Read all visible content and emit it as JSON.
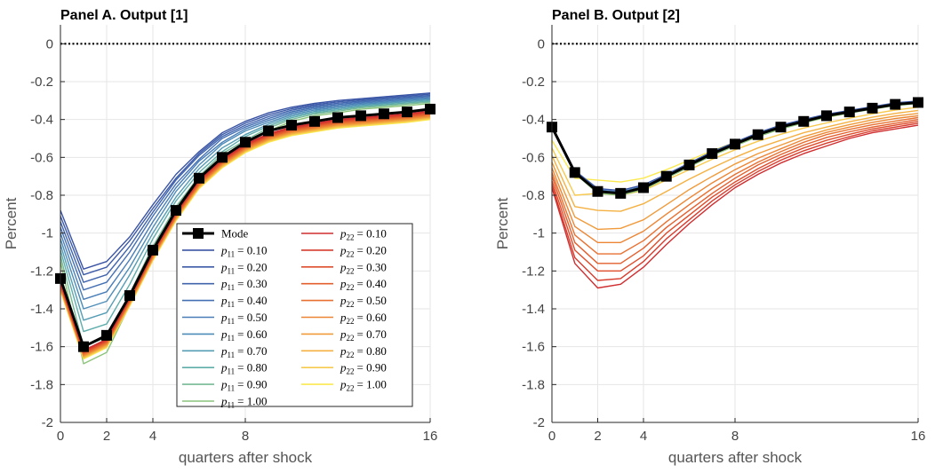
{
  "chart_data": [
    {
      "type": "line",
      "title": "Panel A. Output [1]",
      "xlabel": "quarters after shock",
      "ylabel": "Percent",
      "xlim": [
        0,
        16
      ],
      "ylim": [
        -2,
        0.1
      ],
      "xticks": [
        "0",
        "2",
        "4",
        "8",
        "16"
      ],
      "yticks": [
        "0",
        "-0.2",
        "-0.4",
        "-0.6",
        "-0.8",
        "-1",
        "-1.2",
        "-1.4",
        "-1.6",
        "-1.8",
        "-2"
      ],
      "grid": true,
      "legend": "lower-center",
      "x": [
        0,
        1,
        2,
        3,
        4,
        5,
        6,
        7,
        8,
        9,
        10,
        11,
        12,
        13,
        14,
        15,
        16
      ],
      "zero_line": 0,
      "mode": {
        "name": "Mode",
        "values": [
          -1.24,
          -1.6,
          -1.54,
          -1.33,
          -1.09,
          -0.88,
          -0.71,
          -0.6,
          -0.52,
          -0.46,
          -0.43,
          -0.41,
          -0.39,
          -0.38,
          -0.37,
          -0.36,
          -0.345
        ]
      },
      "series_p11": [
        {
          "name": "p11 = 0.10",
          "color": "#3953a4",
          "values": [
            -0.88,
            -1.19,
            -1.15,
            -1.02,
            -0.85,
            -0.69,
            -0.57,
            -0.47,
            -0.41,
            -0.365,
            -0.335,
            -0.315,
            -0.3,
            -0.29,
            -0.28,
            -0.27,
            -0.26
          ]
        },
        {
          "name": "p11 = 0.20",
          "color": "#3c5aa8",
          "values": [
            -0.91,
            -1.22,
            -1.18,
            -1.04,
            -0.87,
            -0.71,
            -0.58,
            -0.48,
            -0.42,
            -0.375,
            -0.343,
            -0.322,
            -0.307,
            -0.296,
            -0.286,
            -0.276,
            -0.266
          ]
        },
        {
          "name": "p11 = 0.30",
          "color": "#4064ad",
          "values": [
            -0.94,
            -1.26,
            -1.22,
            -1.07,
            -0.89,
            -0.72,
            -0.59,
            -0.49,
            -0.43,
            -0.385,
            -0.351,
            -0.329,
            -0.314,
            -0.302,
            -0.292,
            -0.282,
            -0.272
          ]
        },
        {
          "name": "p11 = 0.40",
          "color": "#4470b3",
          "values": [
            -0.97,
            -1.3,
            -1.26,
            -1.1,
            -0.91,
            -0.74,
            -0.61,
            -0.5,
            -0.44,
            -0.395,
            -0.359,
            -0.336,
            -0.321,
            -0.308,
            -0.298,
            -0.288,
            -0.278
          ]
        },
        {
          "name": "p11 = 0.50",
          "color": "#487db7",
          "values": [
            -1.0,
            -1.35,
            -1.31,
            -1.14,
            -0.94,
            -0.76,
            -0.62,
            -0.52,
            -0.45,
            -0.405,
            -0.367,
            -0.343,
            -0.328,
            -0.314,
            -0.304,
            -0.294,
            -0.284
          ]
        },
        {
          "name": "p11 = 0.60",
          "color": "#4d8cb8",
          "values": [
            -1.03,
            -1.4,
            -1.36,
            -1.18,
            -0.97,
            -0.78,
            -0.64,
            -0.53,
            -0.46,
            -0.415,
            -0.375,
            -0.35,
            -0.335,
            -0.32,
            -0.31,
            -0.3,
            -0.29
          ]
        },
        {
          "name": "p11 = 0.70",
          "color": "#559cb5",
          "values": [
            -1.06,
            -1.46,
            -1.42,
            -1.22,
            -1.0,
            -0.81,
            -0.66,
            -0.55,
            -0.48,
            -0.425,
            -0.383,
            -0.357,
            -0.342,
            -0.326,
            -0.316,
            -0.306,
            -0.296
          ]
        },
        {
          "name": "p11 = 0.80",
          "color": "#5fadaa",
          "values": [
            -1.09,
            -1.52,
            -1.48,
            -1.27,
            -1.03,
            -0.83,
            -0.68,
            -0.57,
            -0.49,
            -0.435,
            -0.391,
            -0.364,
            -0.349,
            -0.332,
            -0.322,
            -0.312,
            -0.302
          ]
        },
        {
          "name": "p11 = 0.90",
          "color": "#76b996",
          "values": [
            -1.12,
            -1.6,
            -1.55,
            -1.32,
            -1.07,
            -0.86,
            -0.7,
            -0.58,
            -0.51,
            -0.445,
            -0.399,
            -0.371,
            -0.356,
            -0.338,
            -0.328,
            -0.318,
            -0.308
          ]
        },
        {
          "name": "p11 = 1.00",
          "color": "#8cc47a",
          "values": [
            -1.15,
            -1.69,
            -1.63,
            -1.38,
            -1.11,
            -0.89,
            -0.73,
            -0.61,
            -0.53,
            -0.46,
            -0.41,
            -0.38,
            -0.365,
            -0.346,
            -0.336,
            -0.326,
            -0.316
          ]
        }
      ],
      "series_p22": [
        {
          "name": "p22 = 0.10",
          "color": "#cf2d2f",
          "values": [
            -1.26,
            -1.62,
            -1.56,
            -1.34,
            -1.1,
            -0.89,
            -0.72,
            -0.61,
            -0.53,
            -0.475,
            -0.44,
            -0.42,
            -0.4,
            -0.39,
            -0.38,
            -0.37,
            -0.355
          ]
        },
        {
          "name": "p22 = 0.20",
          "color": "#d73c2d",
          "values": [
            -1.265,
            -1.625,
            -1.565,
            -1.345,
            -1.105,
            -0.895,
            -0.725,
            -0.615,
            -0.535,
            -0.48,
            -0.445,
            -0.425,
            -0.405,
            -0.395,
            -0.385,
            -0.375,
            -0.36
          ]
        },
        {
          "name": "p22 = 0.30",
          "color": "#de4d2c",
          "values": [
            -1.27,
            -1.63,
            -1.57,
            -1.35,
            -1.11,
            -0.9,
            -0.73,
            -0.62,
            -0.54,
            -0.485,
            -0.45,
            -0.43,
            -0.41,
            -0.4,
            -0.39,
            -0.38,
            -0.365
          ]
        },
        {
          "name": "p22 = 0.40",
          "color": "#e35f2e",
          "values": [
            -1.275,
            -1.635,
            -1.575,
            -1.355,
            -1.115,
            -0.905,
            -0.735,
            -0.625,
            -0.545,
            -0.49,
            -0.455,
            -0.435,
            -0.415,
            -0.405,
            -0.395,
            -0.385,
            -0.37
          ]
        },
        {
          "name": "p22 = 0.50",
          "color": "#e87131",
          "values": [
            -1.28,
            -1.64,
            -1.58,
            -1.36,
            -1.12,
            -0.91,
            -0.74,
            -0.63,
            -0.55,
            -0.495,
            -0.46,
            -0.44,
            -0.42,
            -0.41,
            -0.4,
            -0.39,
            -0.375
          ]
        },
        {
          "name": "p22 = 0.60",
          "color": "#ec8534",
          "values": [
            -1.285,
            -1.645,
            -1.585,
            -1.365,
            -1.125,
            -0.915,
            -0.745,
            -0.635,
            -0.555,
            -0.5,
            -0.465,
            -0.445,
            -0.425,
            -0.415,
            -0.405,
            -0.395,
            -0.38
          ]
        },
        {
          "name": "p22 = 0.70",
          "color": "#f09a3a",
          "values": [
            -1.29,
            -1.65,
            -1.59,
            -1.37,
            -1.13,
            -0.92,
            -0.75,
            -0.64,
            -0.56,
            -0.505,
            -0.47,
            -0.45,
            -0.43,
            -0.42,
            -0.41,
            -0.4,
            -0.385
          ]
        },
        {
          "name": "p22 = 0.80",
          "color": "#f4b142",
          "values": [
            -1.295,
            -1.655,
            -1.595,
            -1.375,
            -1.135,
            -0.925,
            -0.755,
            -0.645,
            -0.565,
            -0.51,
            -0.475,
            -0.455,
            -0.435,
            -0.425,
            -0.415,
            -0.405,
            -0.39
          ]
        },
        {
          "name": "p22 = 0.90",
          "color": "#f7c94c",
          "values": [
            -1.3,
            -1.66,
            -1.6,
            -1.38,
            -1.14,
            -0.93,
            -0.76,
            -0.65,
            -0.57,
            -0.515,
            -0.48,
            -0.46,
            -0.44,
            -0.43,
            -0.42,
            -0.41,
            -0.395
          ]
        },
        {
          "name": "p22 = 1.00",
          "color": "#fbe94f",
          "values": [
            -1.305,
            -1.665,
            -1.605,
            -1.385,
            -1.145,
            -0.935,
            -0.765,
            -0.655,
            -0.575,
            -0.52,
            -0.485,
            -0.465,
            -0.445,
            -0.435,
            -0.425,
            -0.415,
            -0.4
          ]
        }
      ]
    },
    {
      "type": "line",
      "title": "Panel B. Output [2]",
      "xlabel": "quarters after shock",
      "ylabel": "Percent",
      "xlim": [
        0,
        16
      ],
      "ylim": [
        -2,
        0.1
      ],
      "xticks": [
        "0",
        "2",
        "4",
        "8",
        "16"
      ],
      "yticks": [
        "0",
        "-0.2",
        "-0.4",
        "-0.6",
        "-0.8",
        "-1",
        "-1.2",
        "-1.4",
        "-1.6",
        "-1.8",
        "-2"
      ],
      "grid": true,
      "x": [
        0,
        1,
        2,
        3,
        4,
        5,
        6,
        7,
        8,
        9,
        10,
        11,
        12,
        13,
        14,
        15,
        16
      ],
      "zero_line": 0,
      "mode": {
        "name": "Mode",
        "values": [
          -0.44,
          -0.68,
          -0.78,
          -0.79,
          -0.76,
          -0.7,
          -0.64,
          -0.58,
          -0.53,
          -0.48,
          -0.44,
          -0.41,
          -0.38,
          -0.36,
          -0.34,
          -0.32,
          -0.31
        ]
      },
      "series_p11": [
        {
          "name": "p11 = 0.10",
          "color": "#3953a4",
          "values": [
            -0.435,
            -0.67,
            -0.765,
            -0.775,
            -0.745,
            -0.69,
            -0.63,
            -0.57,
            -0.52,
            -0.47,
            -0.43,
            -0.4,
            -0.372,
            -0.352,
            -0.332,
            -0.312,
            -0.302
          ]
        },
        {
          "name": "p11 = 0.50",
          "color": "#487db7",
          "values": [
            -0.44,
            -0.675,
            -0.772,
            -0.782,
            -0.752,
            -0.695,
            -0.635,
            -0.575,
            -0.525,
            -0.475,
            -0.435,
            -0.405,
            -0.376,
            -0.356,
            -0.336,
            -0.316,
            -0.306
          ]
        },
        {
          "name": "p11 = 1.00",
          "color": "#8cc47a",
          "values": [
            -0.445,
            -0.685,
            -0.79,
            -0.8,
            -0.77,
            -0.71,
            -0.65,
            -0.59,
            -0.54,
            -0.49,
            -0.45,
            -0.418,
            -0.388,
            -0.366,
            -0.346,
            -0.326,
            -0.316
          ]
        }
      ],
      "series_p22": [
        {
          "name": "p22 = 0.10",
          "color": "#cf2d2f",
          "values": [
            -0.76,
            -1.16,
            -1.29,
            -1.27,
            -1.18,
            -1.06,
            -0.95,
            -0.85,
            -0.76,
            -0.69,
            -0.63,
            -0.58,
            -0.54,
            -0.5,
            -0.47,
            -0.45,
            -0.43
          ]
        },
        {
          "name": "p22 = 0.20",
          "color": "#d73c2d",
          "values": [
            -0.745,
            -1.13,
            -1.25,
            -1.24,
            -1.15,
            -1.03,
            -0.93,
            -0.83,
            -0.745,
            -0.675,
            -0.615,
            -0.565,
            -0.525,
            -0.49,
            -0.46,
            -0.44,
            -0.42
          ]
        },
        {
          "name": "p22 = 0.30",
          "color": "#de4d2c",
          "values": [
            -0.725,
            -1.09,
            -1.2,
            -1.2,
            -1.12,
            -1.0,
            -0.905,
            -0.81,
            -0.73,
            -0.66,
            -0.6,
            -0.55,
            -0.51,
            -0.478,
            -0.45,
            -0.43,
            -0.41
          ]
        },
        {
          "name": "p22 = 0.40",
          "color": "#e35f2e",
          "values": [
            -0.7,
            -1.05,
            -1.16,
            -1.16,
            -1.08,
            -0.97,
            -0.88,
            -0.79,
            -0.71,
            -0.64,
            -0.585,
            -0.535,
            -0.495,
            -0.465,
            -0.44,
            -0.42,
            -0.4
          ]
        },
        {
          "name": "p22 = 0.50",
          "color": "#e87131",
          "values": [
            -0.68,
            -1.01,
            -1.11,
            -1.11,
            -1.04,
            -0.94,
            -0.85,
            -0.765,
            -0.69,
            -0.625,
            -0.57,
            -0.52,
            -0.48,
            -0.452,
            -0.428,
            -0.408,
            -0.39
          ]
        },
        {
          "name": "p22 = 0.60",
          "color": "#ec8534",
          "values": [
            -0.655,
            -0.965,
            -1.05,
            -1.05,
            -0.99,
            -0.9,
            -0.815,
            -0.735,
            -0.665,
            -0.605,
            -0.555,
            -0.505,
            -0.468,
            -0.44,
            -0.415,
            -0.395,
            -0.38
          ]
        },
        {
          "name": "p22 = 0.70",
          "color": "#f09a3a",
          "values": [
            -0.625,
            -0.915,
            -0.98,
            -0.975,
            -0.93,
            -0.85,
            -0.77,
            -0.7,
            -0.635,
            -0.58,
            -0.535,
            -0.49,
            -0.455,
            -0.427,
            -0.402,
            -0.382,
            -0.368
          ]
        },
        {
          "name": "p22 = 0.80",
          "color": "#f4b142",
          "values": [
            -0.59,
            -0.86,
            -0.88,
            -0.885,
            -0.845,
            -0.78,
            -0.715,
            -0.655,
            -0.6,
            -0.55,
            -0.51,
            -0.47,
            -0.44,
            -0.412,
            -0.388,
            -0.368,
            -0.352
          ]
        },
        {
          "name": "p22 = 0.90",
          "color": "#f7c94c",
          "values": [
            -0.55,
            -0.8,
            -0.79,
            -0.8,
            -0.775,
            -0.72,
            -0.665,
            -0.61,
            -0.56,
            -0.515,
            -0.478,
            -0.445,
            -0.418,
            -0.393,
            -0.37,
            -0.35,
            -0.335
          ]
        },
        {
          "name": "p22 = 1.00",
          "color": "#fbe94f",
          "values": [
            -0.51,
            -0.71,
            -0.72,
            -0.73,
            -0.71,
            -0.665,
            -0.615,
            -0.565,
            -0.52,
            -0.48,
            -0.445,
            -0.415,
            -0.39,
            -0.365,
            -0.345,
            -0.325,
            -0.305
          ]
        }
      ]
    }
  ],
  "legend": {
    "mode_label": "Mode",
    "p11_prefix": "p",
    "p11_sub": "11",
    "p22_prefix": "p",
    "p22_sub": "22",
    "p11_values": [
      "= 0.10",
      "= 0.20",
      "= 0.30",
      "= 0.40",
      "= 0.50",
      "= 0.60",
      "= 0.70",
      "= 0.80",
      "= 0.90",
      "= 1.00"
    ],
    "p22_values": [
      "= 0.10",
      "= 0.20",
      "= 0.30",
      "= 0.40",
      "= 0.50",
      "= 0.60",
      "= 0.70",
      "= 0.80",
      "= 0.90",
      "= 1.00"
    ]
  },
  "colors": {
    "grid": "#e6e6e6",
    "axis": "#262626",
    "mode": "#000000",
    "zero_line": "#000000"
  }
}
